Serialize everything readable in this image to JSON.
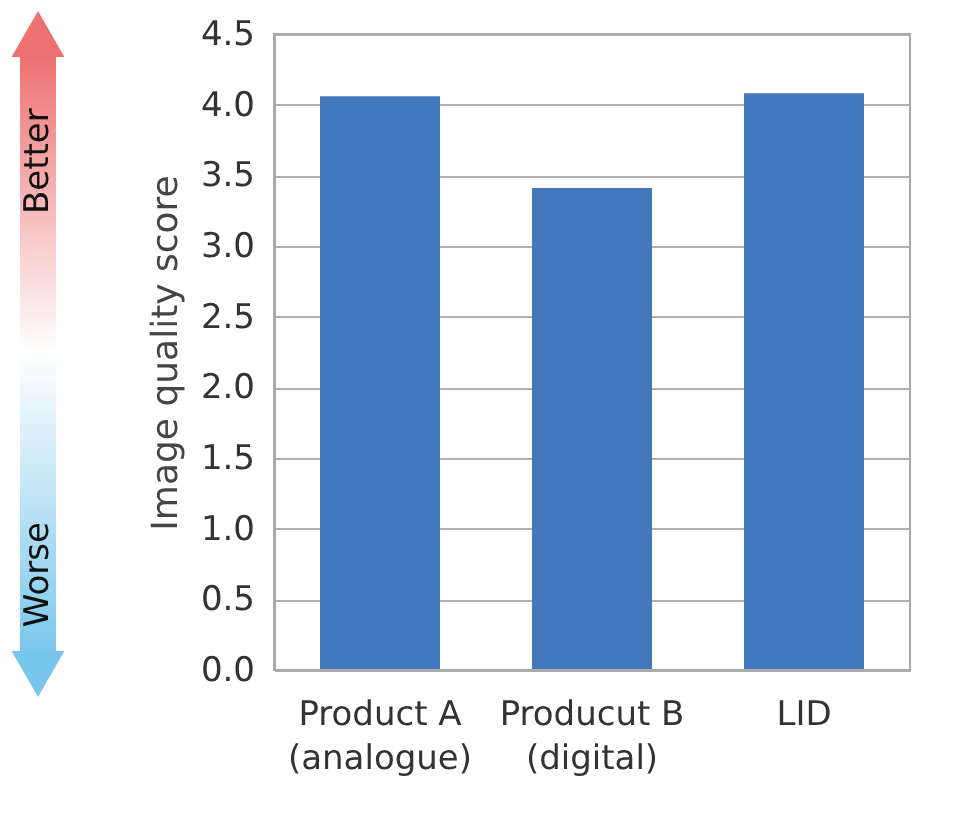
{
  "chart_data": {
    "type": "bar",
    "categories": [
      "Product A (analogue)",
      "Producut B (digital)",
      "LID"
    ],
    "values": [
      4.06,
      3.41,
      4.08
    ],
    "color": "#4279bd",
    "ylabel": "Image quality score",
    "ylim": [
      0,
      4.5
    ],
    "yticks": [
      {
        "value": 0,
        "label": "0.0"
      },
      0.5,
      {
        "value": 1,
        "label": "1.0"
      },
      1.5,
      {
        "value": 2,
        "label": "2.0"
      },
      2.5,
      {
        "value": 3,
        "label": "3.0"
      },
      3.5,
      {
        "value": 4,
        "label": "4.0"
      },
      4.5
    ],
    "grid": "y",
    "annotations": [
      "Better",
      "Worse"
    ]
  }
}
